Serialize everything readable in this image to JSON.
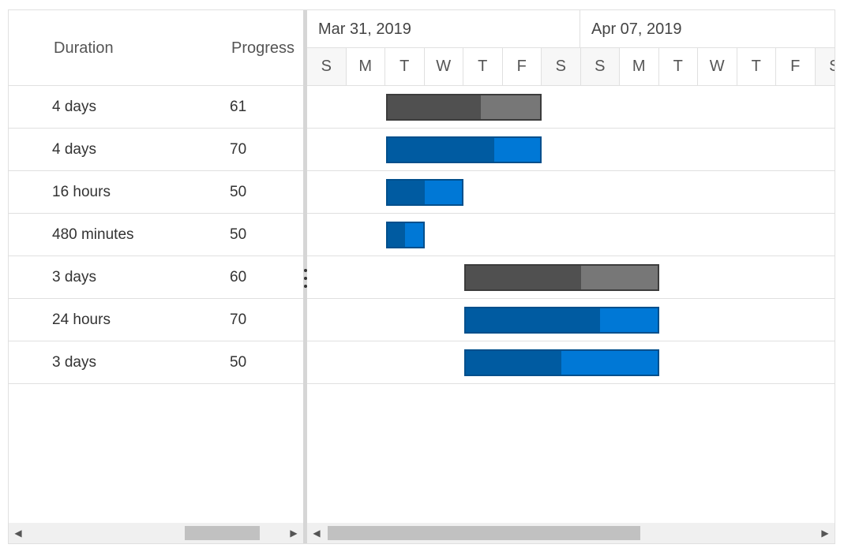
{
  "grid": {
    "columns": {
      "duration": "Duration",
      "progress": "Progress"
    },
    "rows": [
      {
        "duration": "4 days",
        "progress": "61"
      },
      {
        "duration": "4 days",
        "progress": "70"
      },
      {
        "duration": "16 hours",
        "progress": "50"
      },
      {
        "duration": "480 minutes",
        "progress": "50"
      },
      {
        "duration": "3 days",
        "progress": "60"
      },
      {
        "duration": "24 hours",
        "progress": "70"
      },
      {
        "duration": "3 days",
        "progress": "50"
      }
    ]
  },
  "timeline": {
    "weeks": [
      "Mar 31, 2019",
      "Apr 07, 2019"
    ],
    "days": [
      "S",
      "M",
      "T",
      "W",
      "T",
      "F",
      "S",
      "S",
      "M",
      "T",
      "W",
      "T",
      "F",
      "S"
    ]
  },
  "bars": [
    {
      "start_day": 2,
      "span_days": 4,
      "progress": 61,
      "kind": "parent"
    },
    {
      "start_day": 2,
      "span_days": 4,
      "progress": 70,
      "kind": "child"
    },
    {
      "start_day": 2,
      "span_days": 2,
      "progress": 50,
      "kind": "child"
    },
    {
      "start_day": 2,
      "span_days": 1,
      "progress": 50,
      "kind": "child"
    },
    {
      "start_day": 4,
      "span_days": 5,
      "progress": 60,
      "kind": "parent"
    },
    {
      "start_day": 4,
      "span_days": 5,
      "progress": 70,
      "kind": "child"
    },
    {
      "start_day": 4,
      "span_days": 5,
      "progress": 50,
      "kind": "child"
    }
  ],
  "colors": {
    "parent_fill": "#505050",
    "parent_track": "#777777",
    "parent_border": "#3c3c3c",
    "child_fill": "#005ba1",
    "child_track": "#0078d6",
    "child_border": "#004f8c"
  },
  "icons": {
    "scroll_left": "triangle-left-icon",
    "scroll_right": "triangle-right-icon",
    "splitter": "vertical-ellipsis-icon"
  }
}
